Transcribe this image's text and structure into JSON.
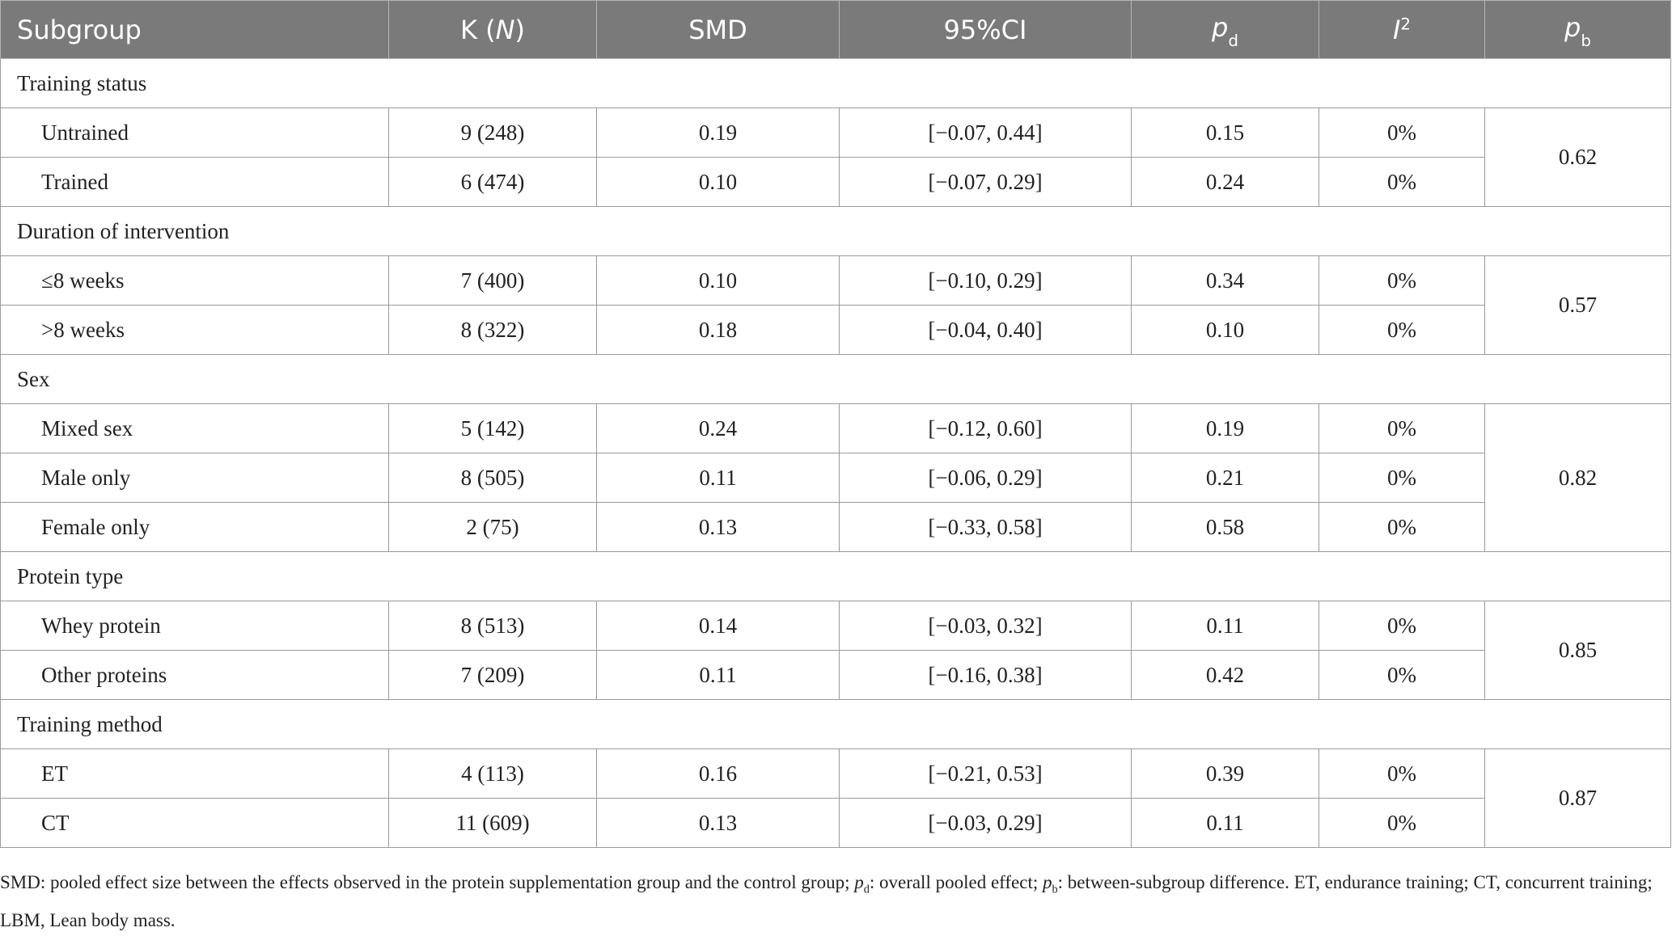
{
  "header": {
    "subgroup": "Subgroup",
    "k_main": "K (",
    "k_italic": "N",
    "k_close": ")",
    "smd": "SMD",
    "ci": "95%CI",
    "pd_main": "p",
    "pd_sub": "d",
    "i2_main": "I",
    "i2_sup": "2",
    "pb_main": "p",
    "pb_sub": "b"
  },
  "groups": [
    {
      "label": "Training status",
      "pb": "0.62",
      "rows": [
        {
          "label": "Untrained",
          "k": "9 (248)",
          "smd": "0.19",
          "ci": "[−0.07, 0.44]",
          "pd": "0.15",
          "i2": "0%"
        },
        {
          "label": "Trained",
          "k": "6 (474)",
          "smd": "0.10",
          "ci": "[−0.07, 0.29]",
          "pd": "0.24",
          "i2": "0%"
        }
      ]
    },
    {
      "label": "Duration of intervention",
      "pb": "0.57",
      "rows": [
        {
          "label": "≤8 weeks",
          "k": "7 (400)",
          "smd": "0.10",
          "ci": "[−0.10, 0.29]",
          "pd": "0.34",
          "i2": "0%"
        },
        {
          "label": ">8 weeks",
          "k": "8 (322)",
          "smd": "0.18",
          "ci": "[−0.04, 0.40]",
          "pd": "0.10",
          "i2": "0%"
        }
      ]
    },
    {
      "label": "Sex",
      "pb": "0.82",
      "rows": [
        {
          "label": "Mixed sex",
          "k": "5 (142)",
          "smd": "0.24",
          "ci": "[−0.12, 0.60]",
          "pd": "0.19",
          "i2": "0%"
        },
        {
          "label": "Male only",
          "k": "8 (505)",
          "smd": "0.11",
          "ci": "[−0.06, 0.29]",
          "pd": "0.21",
          "i2": "0%"
        },
        {
          "label": "Female only",
          "k": "2 (75)",
          "smd": "0.13",
          "ci": "[−0.33, 0.58]",
          "pd": "0.58",
          "i2": "0%"
        }
      ]
    },
    {
      "label": "Protein type",
      "pb": "0.85",
      "rows": [
        {
          "label": "Whey protein",
          "k": "8 (513)",
          "smd": "0.14",
          "ci": "[−0.03, 0.32]",
          "pd": "0.11",
          "i2": "0%"
        },
        {
          "label": "Other proteins",
          "k": "7 (209)",
          "smd": "0.11",
          "ci": "[−0.16, 0.38]",
          "pd": "0.42",
          "i2": "0%"
        }
      ]
    },
    {
      "label": "Training method",
      "pb": "0.87",
      "rows": [
        {
          "label": "ET",
          "k": "4 (113)",
          "smd": "0.16",
          "ci": "[−0.21, 0.53]",
          "pd": "0.39",
          "i2": "0%"
        },
        {
          "label": "CT",
          "k": "11 (609)",
          "smd": "0.13",
          "ci": "[−0.03, 0.29]",
          "pd": "0.11",
          "i2": "0%"
        }
      ]
    }
  ],
  "note": {
    "part1": "SMD: pooled effect size between the effects observed in the protein supplementation group and the control group;",
    "pd_main": "p",
    "pd_sub": "d",
    "part2": ": overall pooled effect;",
    "pb_main": "p",
    "pb_sub": "b",
    "part3": ": between-subgroup difference. ET, endurance training; CT, concurrent training; LBM, Lean body mass."
  }
}
